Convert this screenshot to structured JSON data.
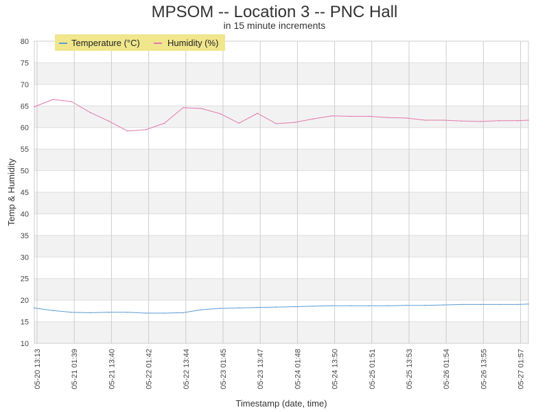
{
  "chart_data": {
    "type": "line",
    "title": "MPSOM -- Location 3 -- PNC Hall",
    "subtitle": "in 15 minute increments",
    "xlabel": "Timestamp (date, time)",
    "ylabel": "Temp & Humidity",
    "ylim": [
      10,
      80
    ],
    "yticks": [
      10,
      15,
      20,
      25,
      30,
      35,
      40,
      45,
      50,
      55,
      60,
      65,
      70,
      75,
      80
    ],
    "grid": "horizontal alternating bands, vertical lines at each x tick",
    "legend_position": "top-left",
    "xticks": [
      "05-20 13:13",
      "05-21 01:39",
      "05-21 13:40",
      "05-22 01:42",
      "05-22 13:44",
      "05-23 01:45",
      "05-23 13:47",
      "05-24 01:48",
      "05-24 13:50",
      "05-25 01:51",
      "05-25 13:53",
      "05-26 01:54",
      "05-26 13:55",
      "05-27 01:57"
    ],
    "x": [
      "05-20 13:13",
      "05-20 19:26",
      "05-21 01:39",
      "05-21 07:40",
      "05-21 13:40",
      "05-21 19:41",
      "05-22 01:42",
      "05-22 07:43",
      "05-22 13:44",
      "05-22 19:44",
      "05-23 01:45",
      "05-23 07:46",
      "05-23 13:47",
      "05-23 19:47",
      "05-24 01:48",
      "05-24 07:49",
      "05-24 13:50",
      "05-24 19:50",
      "05-25 01:51",
      "05-25 07:52",
      "05-25 13:53",
      "05-25 19:53",
      "05-26 01:54",
      "05-26 07:54",
      "05-26 13:55",
      "05-26 19:56",
      "05-27 01:57",
      "05-27 07:30"
    ],
    "series": [
      {
        "name": "Temperature (°C)",
        "color": "#5b9bd5",
        "values": [
          18.2,
          17.6,
          17.2,
          17.1,
          17.2,
          17.2,
          17.0,
          17.0,
          17.1,
          17.8,
          18.1,
          18.2,
          18.3,
          18.4,
          18.5,
          18.6,
          18.7,
          18.7,
          18.7,
          18.7,
          18.8,
          18.8,
          18.9,
          19.0,
          19.0,
          19.0,
          19.0,
          19.1
        ]
      },
      {
        "name": "Humidity (%)",
        "color": "#e377a8",
        "values": [
          64.8,
          66.5,
          66.0,
          63.5,
          61.5,
          59.2,
          59.5,
          61.0,
          64.6,
          64.4,
          63.2,
          61.0,
          63.3,
          60.9,
          61.2,
          62.0,
          62.7,
          62.6,
          62.6,
          62.3,
          62.2,
          61.7,
          61.7,
          61.5,
          61.4,
          61.6,
          61.6,
          61.7
        ]
      }
    ]
  }
}
